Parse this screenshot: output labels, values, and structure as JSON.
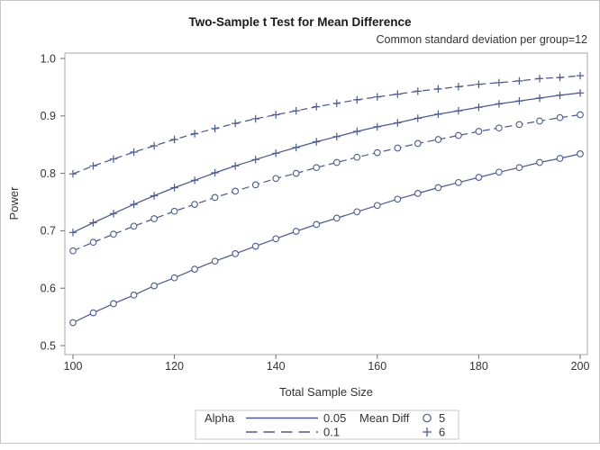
{
  "title": "Two-Sample t Test for Mean Difference",
  "subtitle": "Common standard deviation per group=12",
  "colors": {
    "series": "#4a5a99",
    "frame": "#a9a9a9",
    "tick": "#6e6e6e",
    "text": "#333333",
    "legend_border": "#c9c9c9",
    "background": "#ffffff"
  },
  "chart_data": {
    "type": "line",
    "title": "Two-Sample t Test for Mean Difference",
    "subtitle": "Common standard deviation per group=12",
    "xlabel": "Total Sample Size",
    "ylabel": "Power",
    "xlim": [
      100,
      200
    ],
    "ylim": [
      0.5,
      1.0
    ],
    "x_ticks": [
      100,
      120,
      140,
      160,
      180,
      200
    ],
    "y_ticks": [
      0.5,
      0.6,
      0.7,
      0.8,
      0.9,
      1.0
    ],
    "grid": false,
    "legend_position": "bottom-outside",
    "x": [
      100,
      104,
      108,
      112,
      116,
      120,
      124,
      128,
      132,
      136,
      140,
      144,
      148,
      152,
      156,
      160,
      164,
      168,
      172,
      176,
      180,
      184,
      188,
      192,
      196,
      200
    ],
    "series": [
      {
        "name": "alpha=0.05, mean diff=5",
        "alpha": "0.05",
        "mean_diff": "5",
        "line": "solid",
        "marker": "circle",
        "values": [
          0.54,
          0.557,
          0.573,
          0.588,
          0.604,
          0.618,
          0.633,
          0.647,
          0.66,
          0.673,
          0.686,
          0.699,
          0.711,
          0.722,
          0.733,
          0.744,
          0.755,
          0.765,
          0.775,
          0.784,
          0.793,
          0.802,
          0.81,
          0.819,
          0.826,
          0.834
        ]
      },
      {
        "name": "alpha=0.1, mean diff=5",
        "alpha": "0.1",
        "mean_diff": "5",
        "line": "dashed",
        "marker": "circle",
        "values": [
          0.665,
          0.68,
          0.694,
          0.708,
          0.721,
          0.734,
          0.746,
          0.758,
          0.769,
          0.78,
          0.791,
          0.8,
          0.81,
          0.819,
          0.828,
          0.836,
          0.844,
          0.852,
          0.859,
          0.866,
          0.873,
          0.879,
          0.885,
          0.891,
          0.897,
          0.902
        ]
      },
      {
        "name": "alpha=0.05, mean diff=6",
        "alpha": "0.05",
        "mean_diff": "6",
        "line": "solid",
        "marker": "plus",
        "values": [
          0.697,
          0.714,
          0.73,
          0.746,
          0.761,
          0.775,
          0.788,
          0.801,
          0.813,
          0.824,
          0.835,
          0.845,
          0.855,
          0.864,
          0.873,
          0.881,
          0.888,
          0.896,
          0.903,
          0.909,
          0.915,
          0.921,
          0.926,
          0.931,
          0.936,
          0.94
        ]
      },
      {
        "name": "alpha=0.1, mean diff=6",
        "alpha": "0.1",
        "mean_diff": "6",
        "line": "dashed",
        "marker": "plus",
        "values": [
          0.799,
          0.813,
          0.825,
          0.837,
          0.848,
          0.859,
          0.869,
          0.878,
          0.887,
          0.895,
          0.902,
          0.909,
          0.916,
          0.922,
          0.928,
          0.933,
          0.938,
          0.943,
          0.947,
          0.951,
          0.955,
          0.958,
          0.961,
          0.965,
          0.967,
          0.97
        ]
      }
    ],
    "legend": {
      "alpha_label": "Alpha",
      "alpha_items": [
        {
          "style": "solid",
          "label": "0.05"
        },
        {
          "style": "dashed",
          "label": "0.1"
        }
      ],
      "meandiff_label": "Mean Diff",
      "meandiff_items": [
        {
          "marker": "circle",
          "label": "5"
        },
        {
          "marker": "plus",
          "label": "6"
        }
      ]
    }
  }
}
